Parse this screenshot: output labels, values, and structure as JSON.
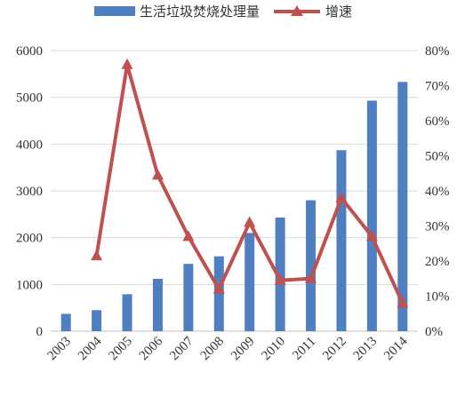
{
  "chart_data": {
    "type": "bar+line",
    "categories": [
      "2003",
      "2004",
      "2005",
      "2006",
      "2007",
      "2008",
      "2009",
      "2010",
      "2011",
      "2012",
      "2013",
      "2014"
    ],
    "series": [
      {
        "name": "生活垃圾焚烧处理量",
        "type": "bar",
        "axis": "left",
        "values": [
          370,
          450,
          790,
          1120,
          1440,
          1600,
          2100,
          2430,
          2800,
          3870,
          4930,
          5330
        ]
      },
      {
        "name": "增速",
        "type": "line",
        "axis": "right",
        "values": [
          null,
          21.5,
          76,
          44.5,
          27,
          12,
          31,
          14.5,
          15,
          38,
          27,
          8
        ]
      }
    ],
    "y_left": {
      "min": 0,
      "max": 6000,
      "ticks": [
        "0",
        "1000",
        "2000",
        "3000",
        "4000",
        "5000",
        "6000"
      ]
    },
    "y_right": {
      "min": 0,
      "max": 80,
      "ticks": [
        "0%",
        "10%",
        "20%",
        "30%",
        "40%",
        "50%",
        "60%",
        "70%",
        "80%"
      ]
    },
    "legend_position": "top",
    "grid": true,
    "colors": {
      "bar": "#4f7fc0",
      "line": "#c0504d"
    }
  }
}
